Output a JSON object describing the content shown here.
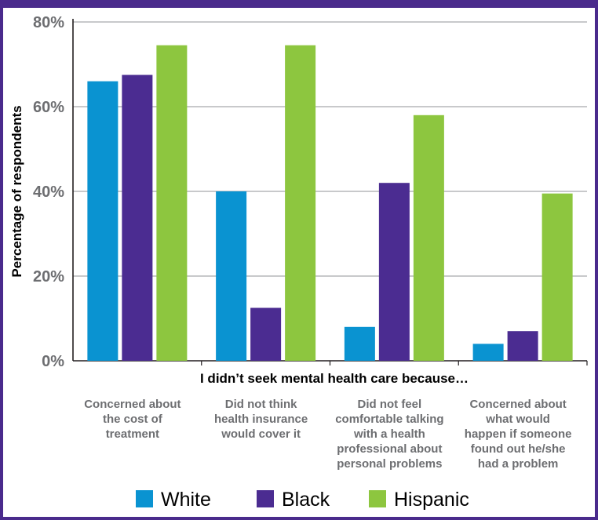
{
  "chart_data": {
    "type": "bar",
    "title": "",
    "ylabel": "Percentage of respondents",
    "xlabel": "I didn’t seek mental health care because…",
    "ylim": [
      0,
      80
    ],
    "yticks": [
      0,
      20,
      40,
      60,
      80
    ],
    "ytick_labels": [
      "0%",
      "20%",
      "40%",
      "60%",
      "80%"
    ],
    "grid": true,
    "legend_position": "bottom",
    "categories": [
      [
        "Concerned about",
        "the cost of",
        "treatment"
      ],
      [
        "Did not think",
        "health insurance",
        "would cover it"
      ],
      [
        "Did not feel",
        "comfortable talking",
        "with a health",
        "professional about",
        "personal problems"
      ],
      [
        "Concerned about",
        "what would",
        "happen if someone",
        "found out he/she",
        "had a problem"
      ]
    ],
    "series": [
      {
        "name": "White",
        "color": "#0a93d1",
        "values": [
          66,
          40,
          8,
          4
        ]
      },
      {
        "name": "Black",
        "color": "#4b2c91",
        "values": [
          67.5,
          12.5,
          42,
          7
        ]
      },
      {
        "name": "Hispanic",
        "color": "#8dc63f",
        "values": [
          74.5,
          74.5,
          58,
          39.5
        ]
      }
    ]
  }
}
